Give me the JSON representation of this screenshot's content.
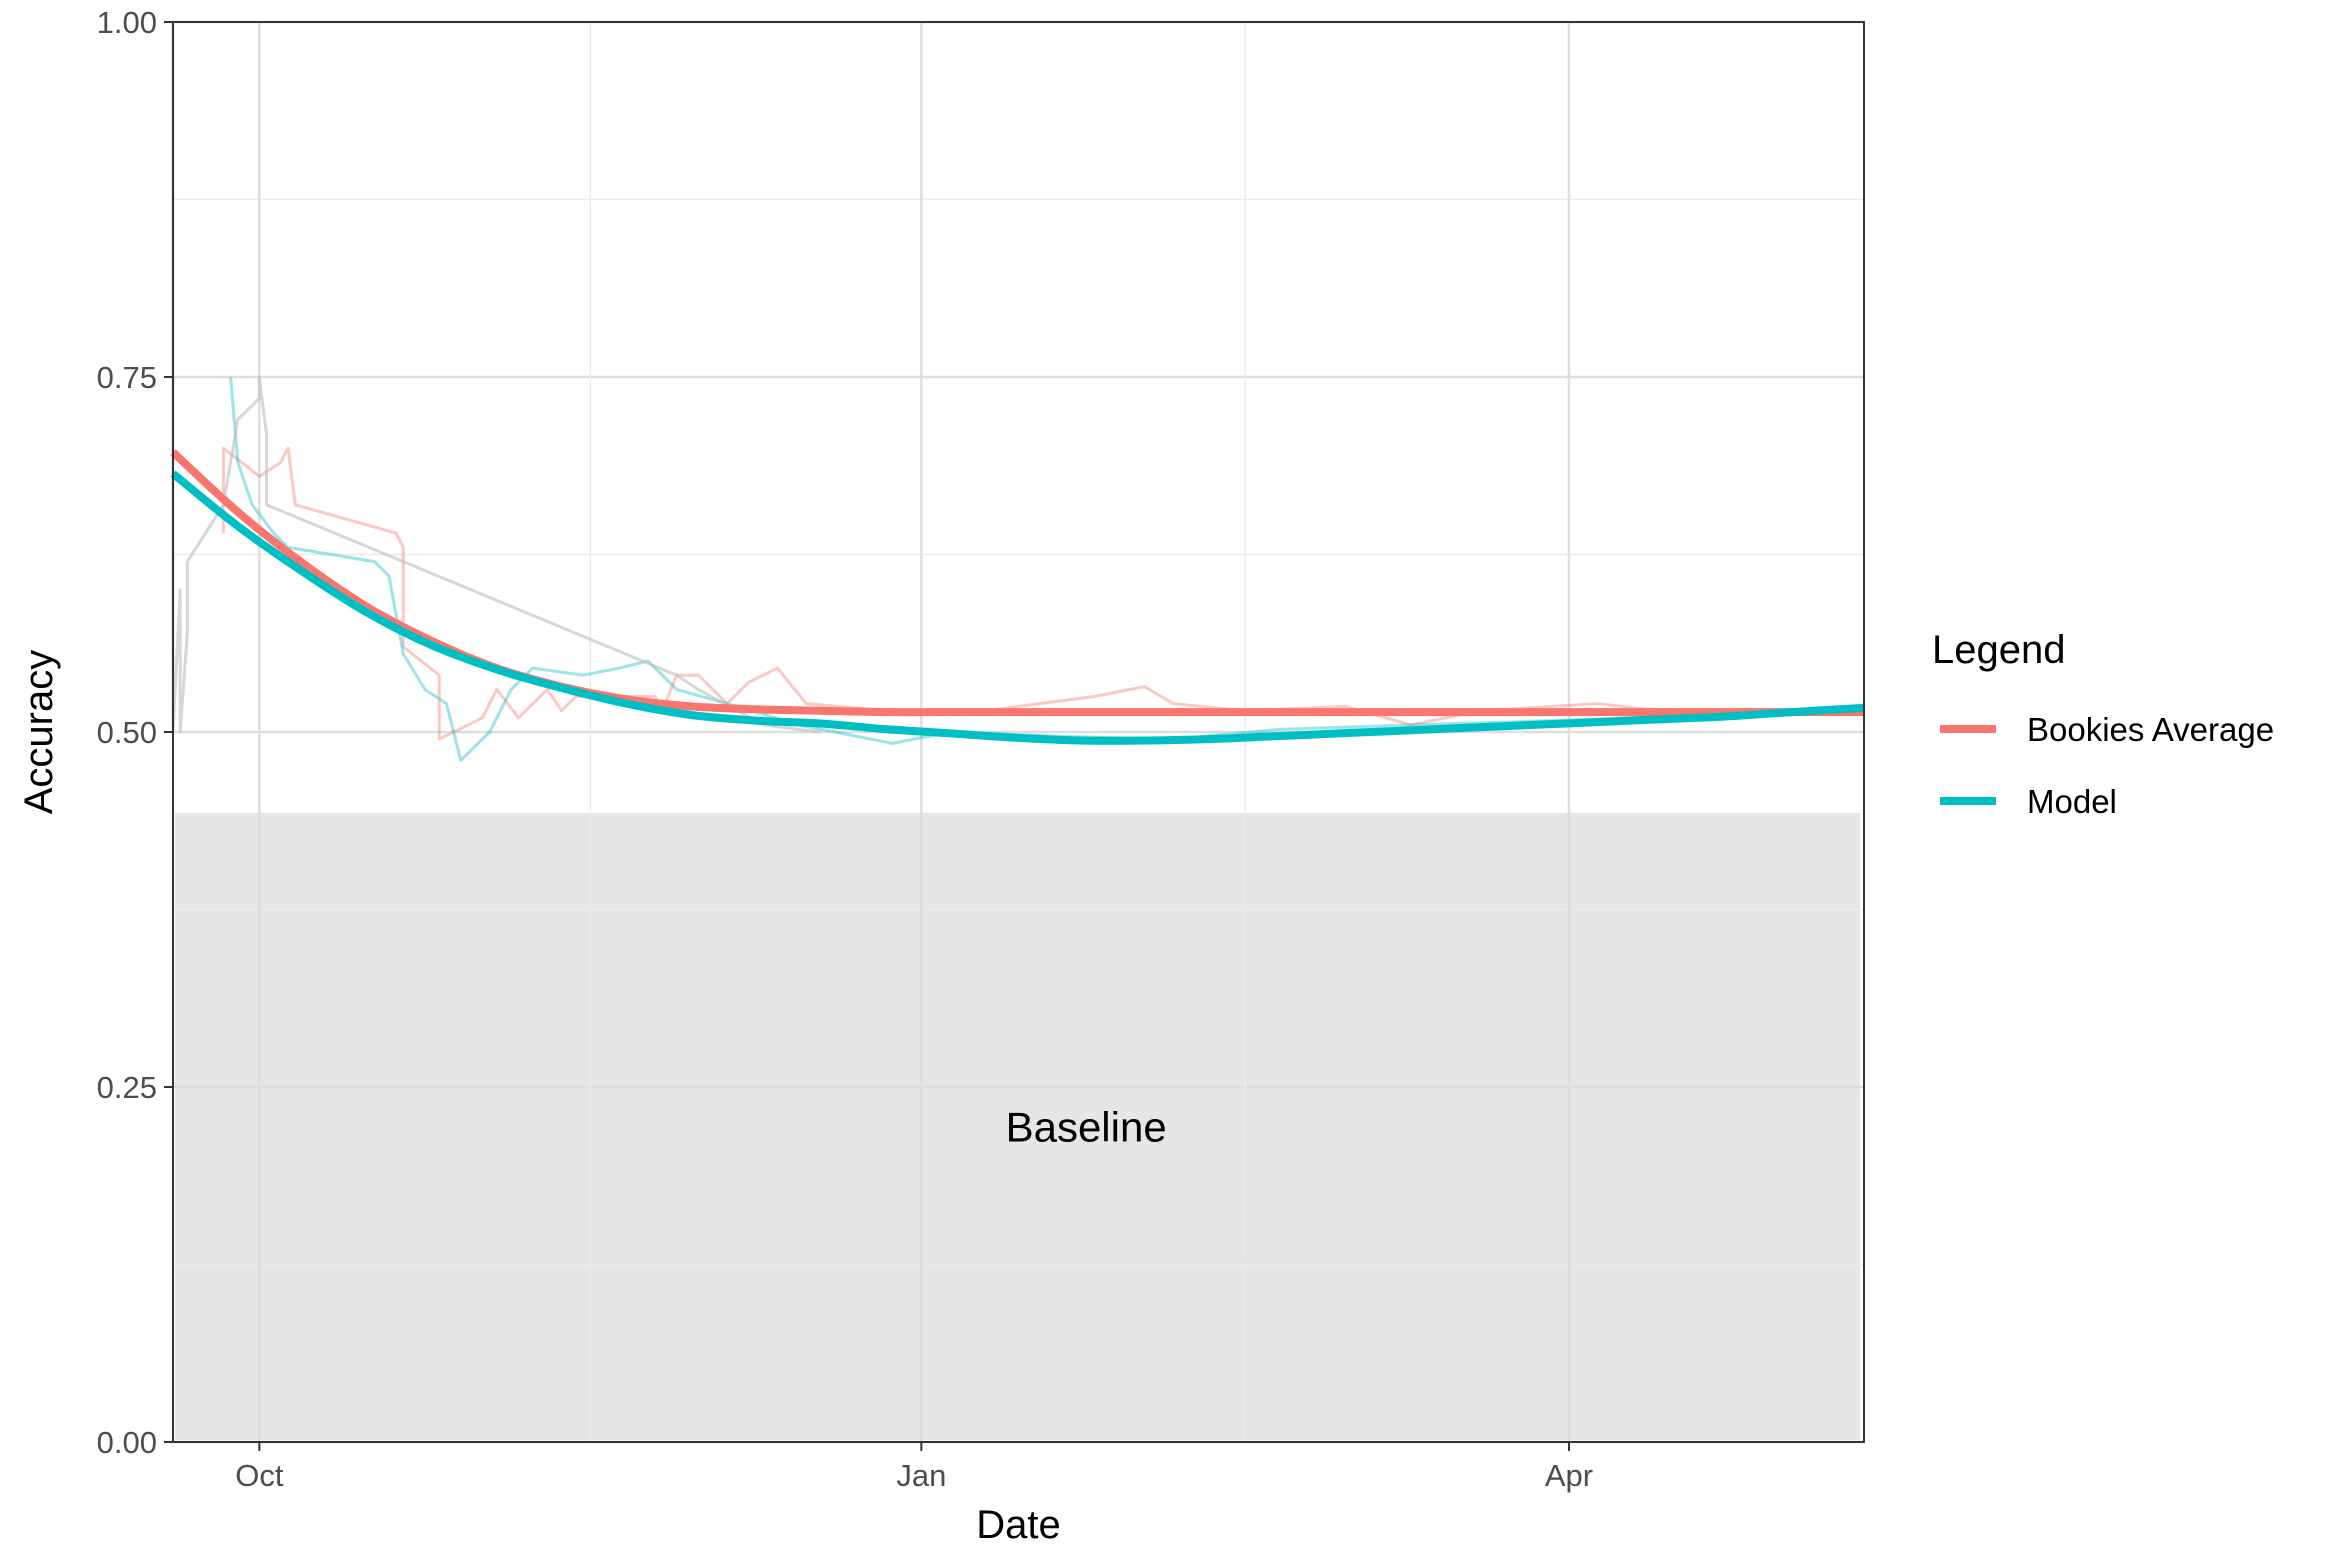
{
  "chart_data": {
    "type": "line",
    "xlabel": "Date",
    "ylabel": "Accuracy",
    "xlim": [
      "2018-09-19",
      "2019-05-12"
    ],
    "ylim": [
      0,
      1
    ],
    "x_ticks": [
      {
        "date": "2018-10-01",
        "label": "Oct"
      },
      {
        "date": "2019-01-01",
        "label": "Jan"
      },
      {
        "date": "2019-04-01",
        "label": "Apr"
      }
    ],
    "y_ticks": [
      {
        "value": 0.0,
        "label": "0.00"
      },
      {
        "value": 0.25,
        "label": "0.25"
      },
      {
        "value": 0.5,
        "label": "0.50"
      },
      {
        "value": 0.75,
        "label": "0.75"
      },
      {
        "value": 1.0,
        "label": "1.00"
      }
    ],
    "grid": true,
    "baseline": {
      "label": "Baseline",
      "value": 0.443,
      "color": "#e6e6e6"
    },
    "legend": {
      "title": "Legend",
      "position": "right"
    },
    "series": [
      {
        "name": "Bookies Average",
        "color": "#F8766D",
        "smooth": [
          [
            "2018-09-19",
            0.697
          ],
          [
            "2018-09-28",
            0.655
          ],
          [
            "2018-10-07",
            0.619
          ],
          [
            "2018-10-16",
            0.588
          ],
          [
            "2018-10-25",
            0.564
          ],
          [
            "2018-11-03",
            0.545
          ],
          [
            "2018-11-12",
            0.532
          ],
          [
            "2018-11-21",
            0.523
          ],
          [
            "2018-11-30",
            0.518
          ],
          [
            "2018-12-09",
            0.516
          ],
          [
            "2018-12-18",
            0.515
          ],
          [
            "2018-12-27",
            0.514
          ],
          [
            "2019-01-05",
            0.514
          ],
          [
            "2019-01-14",
            0.514
          ],
          [
            "2019-01-23",
            0.514
          ],
          [
            "2019-02-01",
            0.514
          ],
          [
            "2019-02-10",
            0.514
          ],
          [
            "2019-02-19",
            0.514
          ],
          [
            "2019-02-28",
            0.514
          ],
          [
            "2019-03-09",
            0.514
          ],
          [
            "2019-03-18",
            0.514
          ],
          [
            "2019-03-27",
            0.514
          ],
          [
            "2019-04-05",
            0.514
          ],
          [
            "2019-04-14",
            0.514
          ],
          [
            "2019-04-23",
            0.514
          ],
          [
            "2019-05-02",
            0.514
          ],
          [
            "2019-05-12",
            0.514
          ]
        ],
        "raw": [
          [
            "2018-09-26",
            0.64
          ],
          [
            "2018-09-26",
            0.7
          ],
          [
            "2018-10-01",
            0.68
          ],
          [
            "2018-10-04",
            0.69
          ],
          [
            "2018-10-05",
            0.7
          ],
          [
            "2018-10-06",
            0.66
          ],
          [
            "2018-10-20",
            0.64
          ],
          [
            "2018-10-21",
            0.63
          ],
          [
            "2018-10-21",
            0.56
          ],
          [
            "2018-10-26",
            0.54
          ],
          [
            "2018-10-26",
            0.495
          ],
          [
            "2018-11-01",
            0.51
          ],
          [
            "2018-11-03",
            0.53
          ],
          [
            "2018-11-06",
            0.51
          ],
          [
            "2018-11-10",
            0.53
          ],
          [
            "2018-11-12",
            0.515
          ],
          [
            "2018-11-14",
            0.525
          ],
          [
            "2018-11-25",
            0.525
          ],
          [
            "2018-11-26",
            0.515
          ],
          [
            "2018-11-28",
            0.54
          ],
          [
            "2018-12-01",
            0.54
          ],
          [
            "2018-12-05",
            0.52
          ],
          [
            "2018-12-08",
            0.535
          ],
          [
            "2018-12-12",
            0.545
          ],
          [
            "2018-12-16",
            0.52
          ],
          [
            "2018-12-25",
            0.516
          ],
          [
            "2019-01-10",
            0.515
          ],
          [
            "2019-01-25",
            0.525
          ],
          [
            "2019-02-01",
            0.532
          ],
          [
            "2019-02-05",
            0.52
          ],
          [
            "2019-02-15",
            0.515
          ],
          [
            "2019-03-01",
            0.518
          ],
          [
            "2019-03-10",
            0.505
          ],
          [
            "2019-03-20",
            0.515
          ],
          [
            "2019-04-05",
            0.52
          ],
          [
            "2019-04-15",
            0.514
          ],
          [
            "2019-05-10",
            0.514
          ]
        ]
      },
      {
        "name": "Model",
        "color": "#00BFC4",
        "smooth": [
          [
            "2018-09-19",
            0.682
          ],
          [
            "2018-09-28",
            0.645
          ],
          [
            "2018-10-07",
            0.613
          ],
          [
            "2018-10-16",
            0.584
          ],
          [
            "2018-10-25",
            0.561
          ],
          [
            "2018-11-03",
            0.544
          ],
          [
            "2018-11-12",
            0.531
          ],
          [
            "2018-11-21",
            0.52
          ],
          [
            "2018-11-30",
            0.512
          ],
          [
            "2018-12-09",
            0.508
          ],
          [
            "2018-12-18",
            0.506
          ],
          [
            "2018-12-27",
            0.502
          ],
          [
            "2019-01-05",
            0.499
          ],
          [
            "2019-01-14",
            0.496
          ],
          [
            "2019-01-23",
            0.494
          ],
          [
            "2019-02-01",
            0.494
          ],
          [
            "2019-02-10",
            0.495
          ],
          [
            "2019-02-19",
            0.497
          ],
          [
            "2019-02-28",
            0.499
          ],
          [
            "2019-03-09",
            0.501
          ],
          [
            "2019-03-18",
            0.503
          ],
          [
            "2019-03-27",
            0.505
          ],
          [
            "2019-04-05",
            0.507
          ],
          [
            "2019-04-14",
            0.509
          ],
          [
            "2019-04-23",
            0.511
          ],
          [
            "2019-05-02",
            0.514
          ],
          [
            "2019-05-12",
            0.517
          ]
        ],
        "raw": [
          [
            "2018-09-27",
            0.75
          ],
          [
            "2018-09-28",
            0.69
          ],
          [
            "2018-09-30",
            0.66
          ],
          [
            "2018-10-03",
            0.64
          ],
          [
            "2018-10-05",
            0.63
          ],
          [
            "2018-10-17",
            0.62
          ],
          [
            "2018-10-19",
            0.61
          ],
          [
            "2018-10-21",
            0.555
          ],
          [
            "2018-10-24",
            0.53
          ],
          [
            "2018-10-27",
            0.52
          ],
          [
            "2018-10-29",
            0.48
          ],
          [
            "2018-11-02",
            0.5
          ],
          [
            "2018-11-05",
            0.53
          ],
          [
            "2018-11-08",
            0.545
          ],
          [
            "2018-11-15",
            0.54
          ],
          [
            "2018-11-20",
            0.545
          ],
          [
            "2018-11-24",
            0.55
          ],
          [
            "2018-11-28",
            0.53
          ],
          [
            "2018-12-05",
            0.52
          ],
          [
            "2018-12-15",
            0.505
          ],
          [
            "2018-12-28",
            0.492
          ],
          [
            "2019-01-05",
            0.5
          ],
          [
            "2019-01-20",
            0.497
          ],
          [
            "2019-02-05",
            0.495
          ],
          [
            "2019-02-20",
            0.502
          ],
          [
            "2019-03-10",
            0.505
          ],
          [
            "2019-03-30",
            0.508
          ],
          [
            "2019-04-20",
            0.512
          ],
          [
            "2019-05-10",
            0.516
          ]
        ]
      },
      {
        "name": "",
        "color": "#bdbdbd",
        "raw": [
          [
            "2018-09-19",
            1.0
          ],
          [
            "2018-09-19",
            0.5
          ],
          [
            "2018-09-20",
            0.6
          ],
          [
            "2018-09-20",
            0.5
          ],
          [
            "2018-09-21",
            0.57
          ],
          [
            "2018-09-21",
            0.62
          ],
          [
            "2018-09-26",
            0.66
          ],
          [
            "2018-09-28",
            0.72
          ],
          [
            "2018-10-01",
            0.735
          ],
          [
            "2018-10-01",
            0.75
          ],
          [
            "2018-10-02",
            0.71
          ],
          [
            "2018-10-02",
            0.66
          ],
          [
            "2018-11-28",
            0.54
          ],
          [
            "2018-12-01",
            0.53
          ],
          [
            "2018-12-10",
            0.505
          ],
          [
            "2018-12-18",
            0.5
          ]
        ]
      }
    ]
  }
}
